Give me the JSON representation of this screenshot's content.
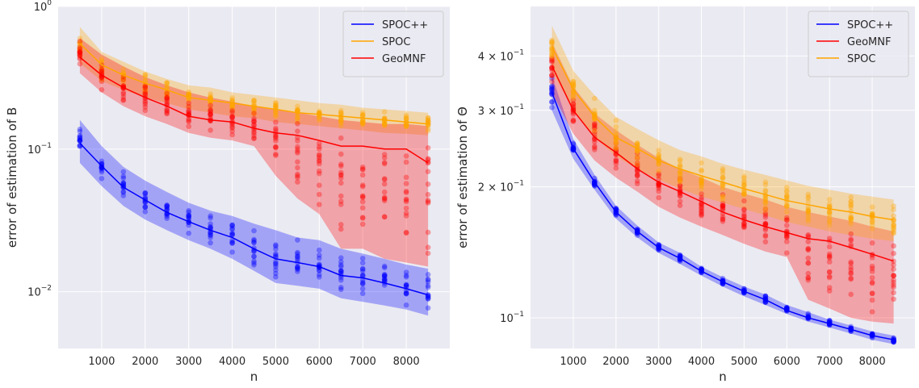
{
  "chart_data": [
    {
      "type": "line",
      "title": "",
      "xlabel": "n",
      "ylabel": "error of estimation of B",
      "yscale": "log",
      "xlim": [
        0,
        9000
      ],
      "ylim": [
        0.004,
        1.0
      ],
      "grid": true,
      "legend_position": "top-right",
      "x_ticks": [
        1000,
        2000,
        3000,
        4000,
        5000,
        6000,
        7000,
        8000
      ],
      "y_ticks": [
        {
          "value": 1,
          "base": "10",
          "exp": "0"
        },
        {
          "value": 0.1,
          "base": "10",
          "exp": "−1"
        },
        {
          "value": 0.01,
          "base": "10",
          "exp": "−2"
        }
      ],
      "x": [
        500,
        1000,
        1500,
        2000,
        2500,
        3000,
        3500,
        4000,
        4500,
        5000,
        5500,
        6000,
        6500,
        7000,
        7500,
        8000,
        8500
      ],
      "series": [
        {
          "name": "SPOC++",
          "color": "#0000ff",
          "mean": [
            0.11,
            0.076,
            0.054,
            0.044,
            0.036,
            0.031,
            0.027,
            0.024,
            0.02,
            0.017,
            0.016,
            0.015,
            0.013,
            0.0125,
            0.0115,
            0.0105,
            0.0095
          ],
          "low": [
            0.08,
            0.055,
            0.04,
            0.032,
            0.027,
            0.023,
            0.02,
            0.017,
            0.014,
            0.0115,
            0.011,
            0.0105,
            0.009,
            0.0085,
            0.008,
            0.0075,
            0.0068
          ],
          "high": [
            0.16,
            0.105,
            0.075,
            0.06,
            0.05,
            0.042,
            0.037,
            0.034,
            0.03,
            0.027,
            0.024,
            0.023,
            0.02,
            0.0185,
            0.017,
            0.0155,
            0.0145
          ]
        },
        {
          "name": "SPOC",
          "color": "#ffa500",
          "mean": [
            0.55,
            0.39,
            0.33,
            0.29,
            0.26,
            0.23,
            0.22,
            0.21,
            0.2,
            0.19,
            0.18,
            0.175,
            0.17,
            0.165,
            0.16,
            0.155,
            0.15
          ],
          "low": [
            0.4,
            0.3,
            0.26,
            0.23,
            0.21,
            0.19,
            0.18,
            0.17,
            0.165,
            0.155,
            0.15,
            0.145,
            0.14,
            0.135,
            0.13,
            0.128,
            0.125
          ],
          "high": [
            0.72,
            0.48,
            0.41,
            0.35,
            0.31,
            0.28,
            0.27,
            0.25,
            0.24,
            0.23,
            0.22,
            0.21,
            0.205,
            0.195,
            0.19,
            0.185,
            0.18
          ]
        },
        {
          "name": "GeoMNF",
          "color": "#ff0000",
          "mean": [
            0.44,
            0.33,
            0.27,
            0.23,
            0.2,
            0.17,
            0.16,
            0.155,
            0.14,
            0.13,
            0.125,
            0.115,
            0.105,
            0.105,
            0.1,
            0.1,
            0.08
          ],
          "low": [
            0.34,
            0.25,
            0.2,
            0.17,
            0.15,
            0.13,
            0.12,
            0.115,
            0.105,
            0.065,
            0.045,
            0.035,
            0.02,
            0.02,
            0.017,
            0.016,
            0.015
          ],
          "high": [
            0.6,
            0.46,
            0.38,
            0.32,
            0.28,
            0.25,
            0.23,
            0.215,
            0.2,
            0.19,
            0.18,
            0.17,
            0.16,
            0.155,
            0.15,
            0.15,
            0.145
          ]
        }
      ]
    },
    {
      "type": "line",
      "title": "",
      "xlabel": "n",
      "ylabel": "error of estimation of Θ",
      "yscale": "log",
      "xlim": [
        0,
        9000
      ],
      "ylim": [
        0.085,
        0.52
      ],
      "grid": true,
      "legend_position": "top-right",
      "x_ticks": [
        1000,
        2000,
        3000,
        4000,
        5000,
        6000,
        7000,
        8000
      ],
      "y_ticks": [
        {
          "value": 0.4,
          "base": "4 × 10",
          "exp": "−1"
        },
        {
          "value": 0.3,
          "base": "3 × 10",
          "exp": "−1"
        },
        {
          "value": 0.2,
          "base": "2 × 10",
          "exp": "−1"
        },
        {
          "value": 0.1,
          "base": "10",
          "exp": "−1"
        }
      ],
      "x": [
        500,
        1000,
        1500,
        2000,
        2500,
        3000,
        3500,
        4000,
        4500,
        5000,
        5500,
        6000,
        6500,
        7000,
        7500,
        8000,
        8500
      ],
      "series": [
        {
          "name": "SPOC++",
          "color": "#0000ff",
          "mean": [
            0.33,
            0.245,
            0.205,
            0.175,
            0.158,
            0.145,
            0.137,
            0.128,
            0.121,
            0.115,
            0.11,
            0.104,
            0.1,
            0.097,
            0.094,
            0.091,
            0.089
          ],
          "low": [
            0.3,
            0.232,
            0.197,
            0.169,
            0.153,
            0.141,
            0.133,
            0.125,
            0.118,
            0.112,
            0.107,
            0.102,
            0.098,
            0.095,
            0.092,
            0.089,
            0.087
          ],
          "high": [
            0.36,
            0.258,
            0.213,
            0.181,
            0.163,
            0.149,
            0.141,
            0.131,
            0.124,
            0.118,
            0.113,
            0.107,
            0.103,
            0.099,
            0.096,
            0.093,
            0.091
          ]
        },
        {
          "name": "GeoMNF",
          "color": "#ff0000",
          "mean": [
            0.38,
            0.3,
            0.26,
            0.24,
            0.22,
            0.205,
            0.195,
            0.185,
            0.175,
            0.168,
            0.162,
            0.157,
            0.152,
            0.15,
            0.145,
            0.14,
            0.135
          ],
          "low": [
            0.33,
            0.265,
            0.23,
            0.21,
            0.195,
            0.18,
            0.17,
            0.162,
            0.155,
            0.148,
            0.142,
            0.138,
            0.11,
            0.105,
            0.1,
            0.098,
            0.097
          ],
          "high": [
            0.43,
            0.34,
            0.295,
            0.27,
            0.25,
            0.233,
            0.22,
            0.21,
            0.2,
            0.193,
            0.187,
            0.18,
            0.175,
            0.171,
            0.167,
            0.162,
            0.158
          ]
        },
        {
          "name": "SPOC",
          "color": "#ffa500",
          "mean": [
            0.42,
            0.335,
            0.29,
            0.26,
            0.245,
            0.23,
            0.22,
            0.212,
            0.205,
            0.198,
            0.192,
            0.186,
            0.182,
            0.178,
            0.175,
            0.171,
            0.168
          ],
          "low": [
            0.37,
            0.3,
            0.26,
            0.235,
            0.22,
            0.208,
            0.198,
            0.19,
            0.184,
            0.178,
            0.172,
            0.166,
            0.162,
            0.158,
            0.155,
            0.152,
            0.15
          ],
          "high": [
            0.47,
            0.37,
            0.325,
            0.29,
            0.272,
            0.256,
            0.243,
            0.235,
            0.226,
            0.219,
            0.213,
            0.207,
            0.201,
            0.197,
            0.193,
            0.19,
            0.187
          ]
        }
      ]
    }
  ]
}
